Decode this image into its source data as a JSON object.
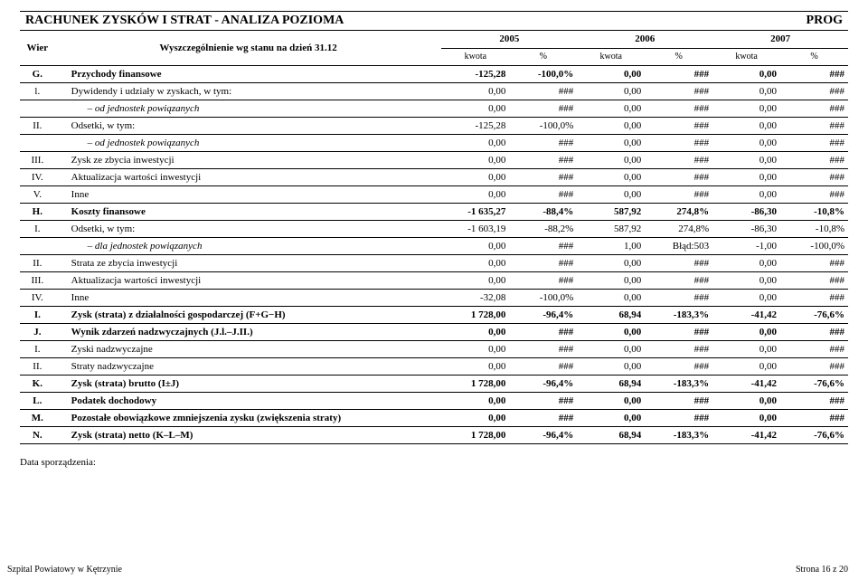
{
  "header": {
    "title_left": "RACHUNEK ZYSKÓW I STRAT - ANALIZA POZIOMA",
    "title_right": "PROG",
    "col_wier": "Wier",
    "col_desc": "Wyszczególnienie wg stanu na dzień 31.12",
    "year_2005": "2005",
    "year_2006": "2006",
    "year_2007": "2007",
    "sub_kwota": "kwota",
    "sub_pct": "%"
  },
  "rows": [
    {
      "id": "G.",
      "bold": true,
      "desc": "Przychody finansowe",
      "v": [
        "-125,28",
        "-100,0%",
        "0,00",
        "###",
        "0,00",
        "###"
      ]
    },
    {
      "id": "l.",
      "desc": "Dywidendy i udziały w zyskach, w tym:",
      "italic": false,
      "v": [
        "0,00",
        "###",
        "0,00",
        "###",
        "0,00",
        "###"
      ]
    },
    {
      "id": "",
      "sub": true,
      "desc": "– od jednostek powiązanych",
      "v": [
        "0,00",
        "###",
        "0,00",
        "###",
        "0,00",
        "###"
      ]
    },
    {
      "id": "II.",
      "desc": "Odsetki, w tym:",
      "v": [
        "-125,28",
        "-100,0%",
        "0,00",
        "###",
        "0,00",
        "###"
      ]
    },
    {
      "id": "",
      "sub": true,
      "desc": "– od jednostek powiązanych",
      "v": [
        "0,00",
        "###",
        "0,00",
        "###",
        "0,00",
        "###"
      ]
    },
    {
      "id": "III.",
      "desc": "Zysk ze zbycia inwestycji",
      "v": [
        "0,00",
        "###",
        "0,00",
        "###",
        "0,00",
        "###"
      ]
    },
    {
      "id": "IV.",
      "desc": "Aktualizacja wartości inwestycji",
      "v": [
        "0,00",
        "###",
        "0,00",
        "###",
        "0,00",
        "###"
      ]
    },
    {
      "id": "V.",
      "desc": "Inne",
      "v": [
        "0,00",
        "###",
        "0,00",
        "###",
        "0,00",
        "###"
      ]
    },
    {
      "id": "H.",
      "bold": true,
      "desc": "Koszty finansowe",
      "v": [
        "-1 635,27",
        "-88,4%",
        "587,92",
        "274,8%",
        "-86,30",
        "-10,8%"
      ]
    },
    {
      "id": "I.",
      "desc": "Odsetki, w tym:",
      "v": [
        "-1 603,19",
        "-88,2%",
        "587,92",
        "274,8%",
        "-86,30",
        "-10,8%"
      ]
    },
    {
      "id": "",
      "sub": true,
      "desc": "– dla jednostek powiązanych",
      "v": [
        "0,00",
        "###",
        "1,00",
        "Błąd:503",
        "-1,00",
        "-100,0%"
      ]
    },
    {
      "id": "II.",
      "desc": "Strata ze zbycia inwestycji",
      "v": [
        "0,00",
        "###",
        "0,00",
        "###",
        "0,00",
        "###"
      ]
    },
    {
      "id": "III.",
      "desc": "Aktualizacja wartości inwestycji",
      "v": [
        "0,00",
        "###",
        "0,00",
        "###",
        "0,00",
        "###"
      ]
    },
    {
      "id": "IV.",
      "desc": "Inne",
      "v": [
        "-32,08",
        "-100,0%",
        "0,00",
        "###",
        "0,00",
        "###"
      ]
    },
    {
      "id": "I.",
      "bold": true,
      "desc": "Zysk (strata) z działalności gospodarczej (F+G−H)",
      "v": [
        "1 728,00",
        "-96,4%",
        "68,94",
        "-183,3%",
        "-41,42",
        "-76,6%"
      ]
    },
    {
      "id": "J.",
      "bold": true,
      "desc": "Wynik zdarzeń nadzwyczajnych (J.l.–J.II.)",
      "v": [
        "0,00",
        "###",
        "0,00",
        "###",
        "0,00",
        "###"
      ]
    },
    {
      "id": "I.",
      "desc": "Zyski nadzwyczajne",
      "v": [
        "0,00",
        "###",
        "0,00",
        "###",
        "0,00",
        "###"
      ]
    },
    {
      "id": "II.",
      "desc": "Straty nadzwyczajne",
      "v": [
        "0,00",
        "###",
        "0,00",
        "###",
        "0,00",
        "###"
      ]
    },
    {
      "id": "K.",
      "bold": true,
      "desc": "Zysk (strata) brutto (I±J)",
      "v": [
        "1 728,00",
        "-96,4%",
        "68,94",
        "-183,3%",
        "-41,42",
        "-76,6%"
      ]
    },
    {
      "id": "L.",
      "bold": true,
      "desc": "Podatek dochodowy",
      "v": [
        "0,00",
        "###",
        "0,00",
        "###",
        "0,00",
        "###"
      ]
    },
    {
      "id": "M.",
      "bold": true,
      "desc": "Pozostałe obowiązkowe zmniejszenia zysku (zwiększenia straty)",
      "v": [
        "0,00",
        "###",
        "0,00",
        "###",
        "0,00",
        "###"
      ]
    },
    {
      "id": "N.",
      "bold": true,
      "desc": "Zysk (strata) netto (K–L–M)",
      "v": [
        "1 728,00",
        "-96,4%",
        "68,94",
        "-183,3%",
        "-41,42",
        "-76,6%"
      ]
    }
  ],
  "footer": {
    "note": "Data sporządzenia:",
    "org": "Szpital Powiatowy w Kętrzynie",
    "page": "Strona 16 z 20"
  }
}
